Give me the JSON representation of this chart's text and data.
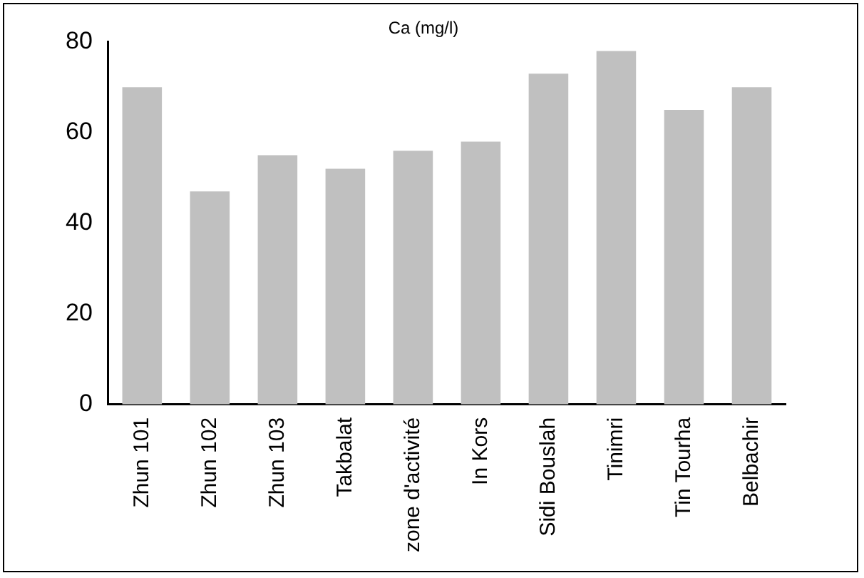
{
  "chart_data": {
    "type": "bar",
    "title": "Ca (mg/l)",
    "categories": [
      "Zhun 101",
      "Zhun 102",
      "Zhun 103",
      "Takbalat",
      "zone d'activité",
      "In Kors",
      "Sidi Bouslah",
      "Tinimri",
      "Tin Tourha",
      "Belbachir"
    ],
    "values": [
      70,
      47,
      55,
      52,
      56,
      58,
      73,
      78,
      65,
      70
    ],
    "color": "#c0c0c0",
    "ylim": [
      0,
      80
    ],
    "yticks": [
      0,
      20,
      40,
      60,
      80
    ],
    "grid": false,
    "legend": false
  }
}
